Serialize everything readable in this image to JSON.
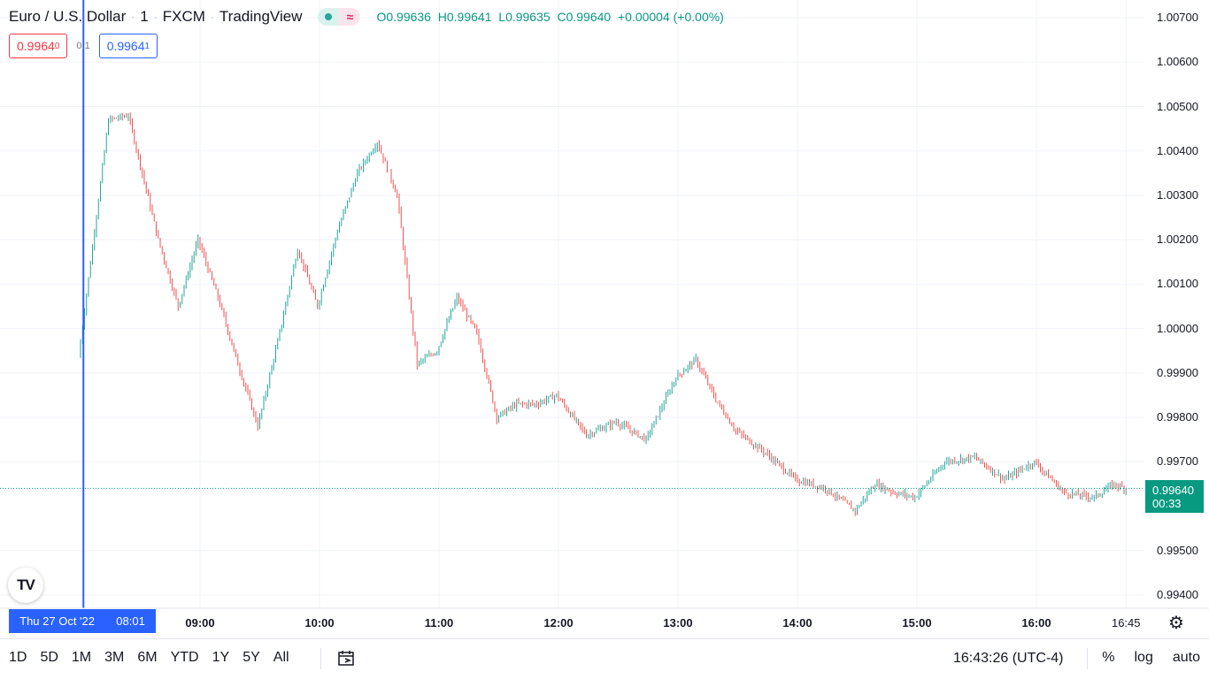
{
  "header": {
    "symbol": "Euro / U.S. Dollar",
    "interval": "1",
    "exchange": "FXCM",
    "source": "TradingView",
    "ohlc": {
      "o_label": "O",
      "o": "0.99636",
      "h_label": "H",
      "h": "0.99641",
      "l_label": "L",
      "l": "0.99635",
      "c_label": "C",
      "c": "0.99640",
      "change": "+0.00004 (+0.00%)"
    }
  },
  "quotes": {
    "sell_main": "0.9964",
    "sell_sup": "0",
    "spread": "0.1",
    "buy_main": "0.9964",
    "buy_sup": "1"
  },
  "price_axis": {
    "ticks": [
      "1.00700",
      "1.00600",
      "1.00500",
      "1.00400",
      "1.00300",
      "1.00200",
      "1.00100",
      "1.00000",
      "0.99900",
      "0.99800",
      "0.99700",
      "0.99500",
      "0.99400"
    ],
    "tick_values": [
      1.007,
      1.006,
      1.005,
      1.004,
      1.003,
      1.002,
      1.001,
      1.0,
      0.999,
      0.998,
      0.997,
      0.995,
      0.994
    ],
    "last_price": "0.99640",
    "countdown": "00:33",
    "last_price_value": 0.9964
  },
  "time_axis": {
    "ticks": [
      "09:00",
      "10:00",
      "11:00",
      "12:00",
      "13:00",
      "14:00",
      "15:00",
      "16:00",
      "16:45"
    ],
    "crosshair_label_date": "Thu 27 Oct '22",
    "crosshair_label_time": "08:01"
  },
  "bottom_bar": {
    "ranges": [
      "1D",
      "5D",
      "1M",
      "3M",
      "6M",
      "YTD",
      "1Y",
      "5Y",
      "All"
    ],
    "clock": "16:43:26 (UTC-4)",
    "percent": "%",
    "log": "log",
    "auto": "auto"
  },
  "logo": "TV",
  "colors": {
    "up": "#26a69a",
    "down": "#ef5350",
    "crosshair": "#2962ff",
    "last": "#089981"
  },
  "chart_data": {
    "type": "candlestick-line",
    "x_label": "",
    "y_label": "",
    "ylim": [
      0.9937,
      1.0074
    ],
    "x_start": "08:00",
    "x_end": "16:45",
    "crosshair_time": "08:01",
    "crosshair_date": "Thu 27 Oct '22",
    "x": [
      "08:00",
      "08:15",
      "08:25",
      "08:40",
      "08:50",
      "09:00",
      "09:10",
      "09:20",
      "09:30",
      "09:40",
      "09:50",
      "10:00",
      "10:10",
      "10:20",
      "10:30",
      "10:40",
      "10:50",
      "11:00",
      "11:10",
      "11:20",
      "11:30",
      "11:40",
      "11:50",
      "12:00",
      "12:15",
      "12:30",
      "12:45",
      "13:00",
      "13:10",
      "13:20",
      "13:30",
      "13:45",
      "14:00",
      "14:15",
      "14:30",
      "14:40",
      "14:50",
      "15:00",
      "15:15",
      "15:30",
      "15:45",
      "16:00",
      "16:15",
      "16:30",
      "16:40",
      "16:45"
    ],
    "y": [
      0.99935,
      1.0047,
      1.0048,
      1.002,
      1.0005,
      1.002,
      1.0007,
      0.9992,
      0.9978,
      0.9997,
      1.0018,
      1.0005,
      1.0022,
      1.0035,
      1.0042,
      1.003,
      0.9992,
      0.9995,
      1.0007,
      0.9999,
      0.998,
      0.9983,
      0.9983,
      0.9985,
      0.9976,
      0.9979,
      0.9975,
      0.9989,
      0.9993,
      0.9984,
      0.9977,
      0.9972,
      0.9966,
      0.9964,
      0.9959,
      0.9965,
      0.9963,
      0.9962,
      0.997,
      0.9971,
      0.9966,
      0.997,
      0.9963,
      0.9962,
      0.9965,
      0.9964
    ]
  }
}
